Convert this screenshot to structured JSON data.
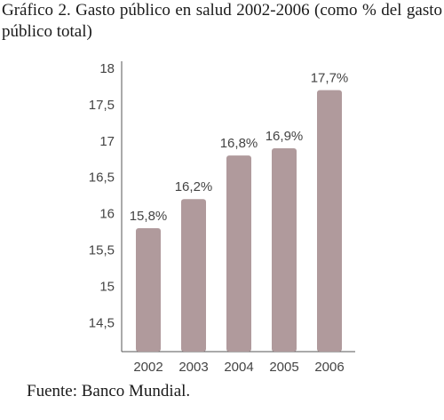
{
  "title": "Gráfico 2. Gasto público en salud 2002-2006 (como % del gasto público total)",
  "source": "Fuente: Banco Mundial.",
  "chart_data": {
    "type": "bar",
    "title": "Gráfico 2. Gasto público en salud 2002-2006 (como % del gasto público total)",
    "xlabel": "",
    "ylabel": "",
    "categories": [
      "2002",
      "2003",
      "2004",
      "2005",
      "2006"
    ],
    "values": [
      15.8,
      16.2,
      16.8,
      16.9,
      17.7
    ],
    "data_labels": [
      "15,8%",
      "16,2%",
      "16,8%",
      "16,9%",
      "17,7%"
    ],
    "ylim": [
      14.1,
      18
    ],
    "yticks": [
      14.5,
      15,
      15.5,
      16,
      16.5,
      17,
      17.5,
      18
    ],
    "ytick_labels": [
      "14,5",
      "15",
      "15,5",
      "16",
      "16,5",
      "17",
      "17,5",
      "18"
    ],
    "bar_color": "#b09a9c",
    "axis_color": "#555555",
    "grid": false,
    "legend": "none"
  }
}
